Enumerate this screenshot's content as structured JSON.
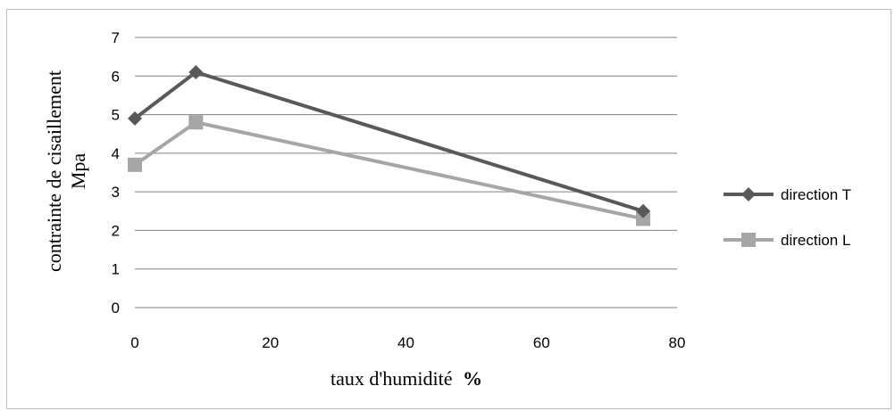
{
  "chart_data": {
    "type": "line",
    "title": "",
    "xlabel": "taux d'humidité",
    "xlabel_unit": "%",
    "ylabel_line1": "contrainte de cisaillement",
    "ylabel_line2": "Mpa",
    "xlim": [
      0,
      80
    ],
    "ylim": [
      0,
      7
    ],
    "x_ticks": [
      "0",
      "20",
      "40",
      "60",
      "80"
    ],
    "y_ticks": [
      "0",
      "1",
      "2",
      "3",
      "4",
      "5",
      "6",
      "7"
    ],
    "grid": "horizontal",
    "legend_position": "right",
    "series": [
      {
        "name": "direction T",
        "color": "#595959",
        "marker": "diamond",
        "x": [
          0,
          9,
          75
        ],
        "y": [
          4.9,
          6.1,
          2.5
        ]
      },
      {
        "name": "direction L",
        "color": "#a6a6a6",
        "marker": "square",
        "x": [
          0,
          9,
          75
        ],
        "y": [
          3.7,
          4.8,
          2.3
        ]
      }
    ]
  }
}
